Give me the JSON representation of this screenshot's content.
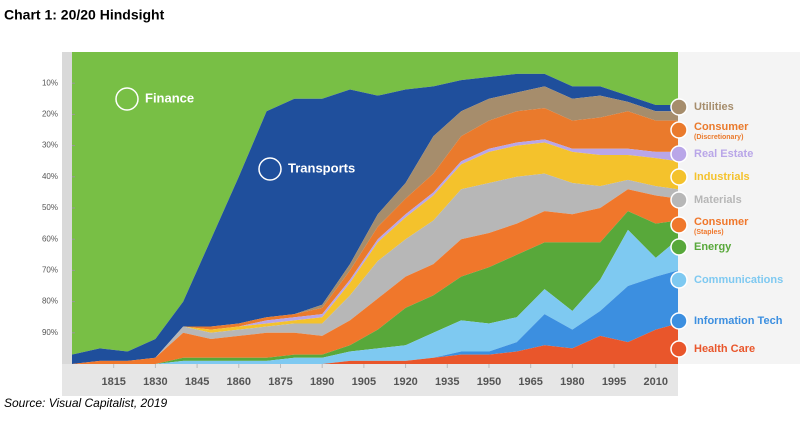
{
  "chart_data": {
    "type": "stacked-area",
    "title": "Chart 1: 20/20 Hindsight",
    "source": "Source: Visual Capitalist, 2019",
    "x": [
      1800,
      1810,
      1820,
      1830,
      1840,
      1850,
      1860,
      1870,
      1880,
      1890,
      1900,
      1910,
      1920,
      1930,
      1940,
      1950,
      1960,
      1970,
      1980,
      1990,
      2000,
      2010,
      2018
    ],
    "xlim": [
      1800,
      2018
    ],
    "xticks": [
      1815,
      1830,
      1845,
      1860,
      1875,
      1890,
      1905,
      1920,
      1935,
      1950,
      1965,
      1980,
      1995,
      2010
    ],
    "ylim": [
      100,
      0
    ],
    "yticks": [
      {
        "value": 10,
        "label": "10%"
      },
      {
        "value": 20,
        "label": "20%"
      },
      {
        "value": 30,
        "label": "30%"
      },
      {
        "value": 40,
        "label": "40%"
      },
      {
        "value": 50,
        "label": "50%"
      },
      {
        "value": 60,
        "label": "60%"
      },
      {
        "value": 70,
        "label": "70%"
      },
      {
        "value": 80,
        "label": "80%"
      },
      {
        "value": 90,
        "label": "90%"
      }
    ],
    "series": [
      {
        "name": "Finance",
        "color": "#78bf45",
        "values": [
          97,
          95,
          96,
          92,
          80,
          60,
          40,
          19,
          15,
          15,
          12,
          14,
          12,
          11,
          9,
          8,
          7,
          7,
          11,
          11,
          14,
          17,
          17
        ]
      },
      {
        "name": "Transports",
        "color": "#1f4f9c",
        "values": [
          3,
          4,
          3,
          6,
          8,
          28,
          47,
          66,
          69,
          66,
          56,
          38,
          30,
          16,
          10,
          7,
          6,
          4,
          4,
          3,
          2,
          2,
          2
        ]
      },
      {
        "name": "Utilities",
        "color": "#a68d6c",
        "values": [
          0,
          0,
          0,
          0,
          0,
          0,
          0,
          0,
          0,
          1,
          2,
          4,
          5,
          12,
          8,
          7,
          6,
          7,
          7,
          7,
          3,
          3,
          3
        ]
      },
      {
        "name": "Consumer",
        "sublabel": "(Discretionary)",
        "color": "#ea7a2c",
        "values": [
          0,
          0,
          0,
          0,
          0,
          1,
          1,
          1,
          1,
          2,
          3,
          4,
          5,
          6,
          8,
          9,
          10,
          10,
          9,
          10,
          12,
          10,
          10
        ]
      },
      {
        "name": "Real Estate",
        "color": "#b9a6e8",
        "values": [
          0,
          0,
          0,
          0,
          0,
          0,
          0,
          1,
          1,
          1,
          1,
          1,
          1,
          1,
          1,
          1,
          1,
          1,
          1,
          2,
          2,
          2,
          3
        ]
      },
      {
        "name": "Industrials",
        "color": "#f4c22c",
        "values": [
          0,
          0,
          0,
          0,
          0,
          1,
          1,
          1,
          1,
          2,
          4,
          6,
          7,
          8,
          8,
          10,
          10,
          10,
          10,
          10,
          8,
          9,
          9
        ]
      },
      {
        "name": "Materials",
        "color": "#b7b7b7",
        "values": [
          0,
          0,
          0,
          0,
          2,
          2,
          2,
          2,
          3,
          4,
          8,
          12,
          12,
          14,
          16,
          16,
          15,
          12,
          10,
          7,
          3,
          3,
          3
        ]
      },
      {
        "name": "Consumer",
        "sublabel": "(Staples)",
        "color": "#f0772b",
        "values": [
          0,
          1,
          1,
          2,
          8,
          6,
          7,
          8,
          7,
          6,
          8,
          10,
          10,
          10,
          12,
          11,
          10,
          10,
          9,
          11,
          7,
          9,
          7
        ]
      },
      {
        "name": "Energy",
        "color": "#58a83a",
        "values": [
          0,
          0,
          0,
          0,
          1,
          1,
          1,
          1,
          1,
          1,
          2,
          6,
          12,
          12,
          14,
          18,
          20,
          15,
          22,
          12,
          6,
          11,
          6
        ]
      },
      {
        "name": "Communications",
        "color": "#7ec9f1",
        "values": [
          0,
          0,
          0,
          0,
          1,
          1,
          1,
          1,
          2,
          2,
          3,
          4,
          5,
          8,
          10,
          9,
          8,
          8,
          6,
          10,
          18,
          6,
          10
        ]
      },
      {
        "name": "Information Tech",
        "color": "#3c8fe0",
        "values": [
          0,
          0,
          0,
          0,
          0,
          0,
          0,
          0,
          0,
          0,
          0,
          0,
          0,
          0,
          1,
          1,
          3,
          10,
          6,
          8,
          18,
          17,
          17
        ]
      },
      {
        "name": "Health Care",
        "color": "#e9562b",
        "values": [
          0,
          0,
          0,
          0,
          0,
          0,
          0,
          0,
          0,
          0,
          1,
          1,
          1,
          2,
          3,
          3,
          4,
          6,
          5,
          9,
          7,
          11,
          13
        ]
      }
    ]
  }
}
